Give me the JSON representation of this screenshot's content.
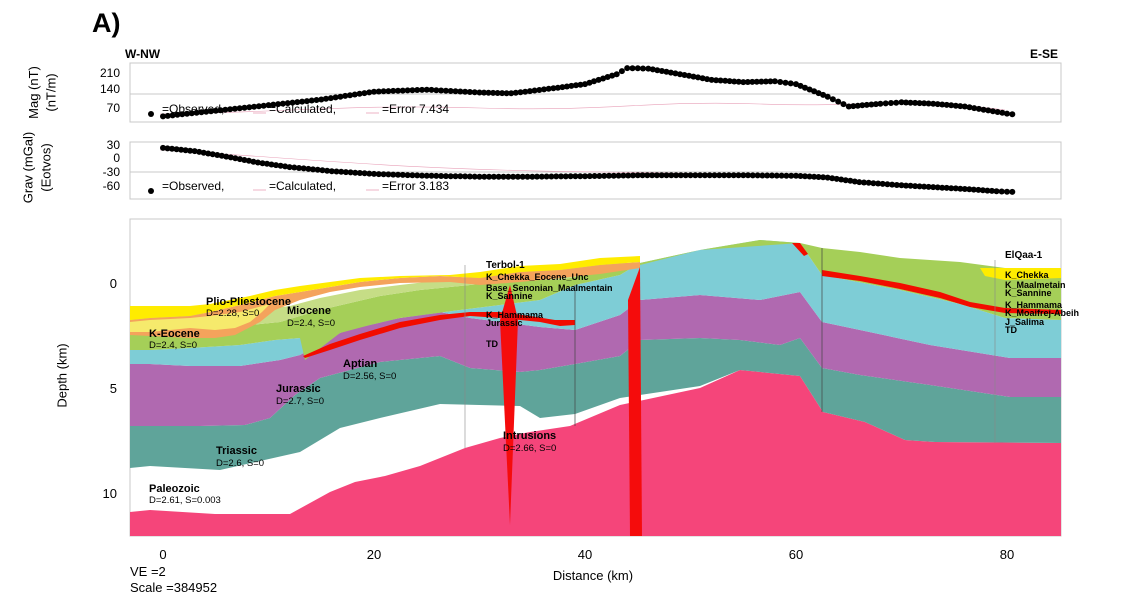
{
  "panel_label": "A)",
  "direction": {
    "left": "W-NW",
    "right": "E-SE"
  },
  "mag_panel": {
    "ylabel_line1": "Mag (nT)",
    "ylabel_line2": "(nT/m)",
    "yticks": [
      "210",
      "140",
      "70"
    ],
    "ylim": [
      30,
      240
    ],
    "legend": {
      "observed": "=Observed,",
      "calculated": "=Calculated,",
      "error": "=Error 7.434"
    },
    "observed": [
      [
        0,
        50
      ],
      [
        5,
        70
      ],
      [
        10,
        90
      ],
      [
        15,
        110
      ],
      [
        20,
        138
      ],
      [
        25,
        145
      ],
      [
        30,
        135
      ],
      [
        33,
        132
      ],
      [
        37,
        150
      ],
      [
        40,
        165
      ],
      [
        43,
        200
      ],
      [
        44,
        222
      ],
      [
        46,
        220
      ],
      [
        49,
        200
      ],
      [
        52,
        180
      ],
      [
        55,
        172
      ],
      [
        58,
        175
      ],
      [
        60,
        165
      ],
      [
        63,
        120
      ],
      [
        65,
        85
      ],
      [
        68,
        95
      ],
      [
        70,
        100
      ],
      [
        73,
        95
      ],
      [
        76,
        85
      ],
      [
        80,
        60
      ],
      [
        81,
        55
      ]
    ]
  },
  "grav_panel": {
    "ylabel_line1": "Grav (mGal)",
    "ylabel_line2": "(Eotvos)",
    "yticks": [
      "30",
      "0",
      "-30",
      "-60"
    ],
    "ylim": [
      -85,
      40
    ],
    "legend": {
      "observed": "=Observed,",
      "calculated": "=Calculated,",
      "error": "=Error 3.183"
    },
    "observed": [
      [
        0,
        27
      ],
      [
        3,
        20
      ],
      [
        6,
        8
      ],
      [
        9,
        -5
      ],
      [
        12,
        -15
      ],
      [
        16,
        -24
      ],
      [
        20,
        -30
      ],
      [
        25,
        -34
      ],
      [
        30,
        -36
      ],
      [
        35,
        -36
      ],
      [
        40,
        -35
      ],
      [
        45,
        -33
      ],
      [
        50,
        -33
      ],
      [
        55,
        -33
      ],
      [
        60,
        -34
      ],
      [
        63,
        -38
      ],
      [
        66,
        -48
      ],
      [
        70,
        -55
      ],
      [
        73,
        -59
      ],
      [
        76,
        -63
      ],
      [
        79,
        -68
      ],
      [
        81,
        -70
      ]
    ]
  },
  "section": {
    "ylabel": "Depth (km)",
    "xlabel": "Distance (km)",
    "xticks": [
      "0",
      "20",
      "40",
      "60",
      "80"
    ],
    "yticks": [
      "0",
      "5",
      "10"
    ],
    "xlim": [
      -3,
      85
    ],
    "ylim": [
      12,
      -2.5
    ],
    "ve_label": "VE =2",
    "scale_label": "Scale =384952",
    "units": [
      {
        "name": "Plio-Pliestocene",
        "params": "D=2.28, S=0"
      },
      {
        "name": "Miocene",
        "params": "D=2.4, S=0"
      },
      {
        "name": "K-Eocene",
        "params": "D=2.4, S=0"
      },
      {
        "name": "Aptian",
        "params": "D=2.56, S=0"
      },
      {
        "name": "Jurassic",
        "params": "D=2.7, S=0"
      },
      {
        "name": "Triassic",
        "params": "D=2.6, S=0"
      },
      {
        "name": "Paleozoic",
        "params": "D=2.61, S=0.003"
      },
      {
        "name": "Intrusions",
        "params": "D=2.66, S=0"
      }
    ],
    "well_terbol": {
      "name": "Terbol-1",
      "tops": [
        "K_Chekka_Eocene_Unc",
        "Base_Senonian_Maalmentain",
        "K_Sannine",
        "K_Hammama",
        "Jurassic",
        "TD"
      ]
    },
    "well_elqaa": {
      "name": "ElQaa-1",
      "tops": [
        "K_Chekka",
        "K_Maalmetain",
        "K_Sannine",
        "K_Hammama",
        "K_Moaifrej-Abeih",
        "J_Salima",
        "TD"
      ]
    },
    "colors": {
      "plio": "#f6ea6c",
      "yellow": "#ffec00",
      "miocene": "#f4a35c",
      "light_green": "#c6dd86",
      "green": "#a5cf58",
      "aptian_red": "#f20c00",
      "cyan": "#7ecdd6",
      "purple": "#b069b0",
      "teal": "#5fa49a",
      "basement": "#f5457a",
      "intrusion": "#f50c0c"
    }
  }
}
